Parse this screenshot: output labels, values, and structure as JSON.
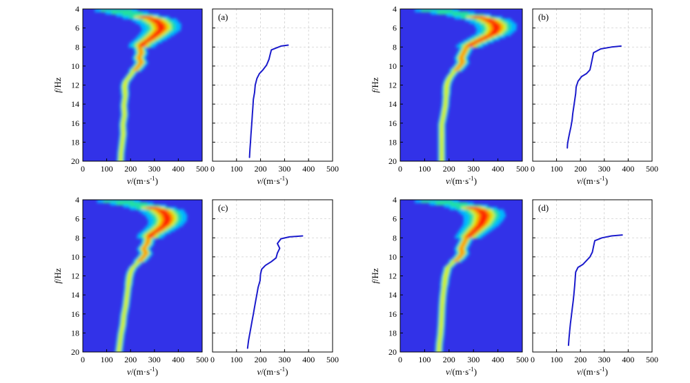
{
  "chart_data": [
    {
      "type": "heatmap",
      "panel": "a",
      "xlabel_parts": [
        "v",
        "/(m·s",
        "-1",
        ")"
      ],
      "ylabel_parts": [
        "f",
        "/Hz"
      ],
      "xlim": [
        0,
        500
      ],
      "ylim": [
        20,
        4
      ],
      "x_ticks": [
        0,
        100,
        200,
        300,
        400,
        500
      ],
      "y_ticks": [
        4,
        6,
        8,
        10,
        12,
        14,
        16,
        18,
        20
      ],
      "ridge": {
        "f": [
          4.0,
          4.5,
          5.0,
          5.5,
          6.0,
          6.5,
          7.0,
          7.5,
          8.0,
          8.5,
          9.0,
          9.5,
          10.0,
          10.5,
          11.0,
          11.5,
          12.0,
          13.0,
          14.0,
          15.0,
          16.0,
          17.0,
          18.0,
          19.0,
          20.0
        ],
        "v": [
          140,
          230,
          300,
          325,
          330,
          310,
          285,
          255,
          240,
          245,
          235,
          245,
          230,
          210,
          195,
          180,
          175,
          178,
          172,
          175,
          168,
          170,
          165,
          160,
          158
        ]
      }
    },
    {
      "type": "line",
      "panel": "a",
      "label": "(a)",
      "xlabel_parts": [
        "v",
        "/(m·s",
        "-1",
        ")"
      ],
      "xlim": [
        0,
        500
      ],
      "ylim": [
        20,
        4
      ],
      "x_ticks": [
        0,
        100,
        200,
        300,
        400,
        500
      ],
      "x": [
        315,
        285,
        245,
        240,
        235,
        225,
        210,
        195,
        185,
        178,
        175,
        170,
        168,
        166,
        164,
        162,
        160,
        158,
        156,
        155,
        154
      ],
      "y": [
        7.8,
        7.9,
        8.3,
        8.8,
        9.3,
        9.9,
        10.4,
        10.8,
        11.3,
        12.0,
        12.8,
        13.5,
        14.3,
        15.0,
        15.8,
        16.5,
        17.2,
        18.0,
        18.7,
        19.2,
        19.6
      ]
    },
    {
      "type": "heatmap",
      "panel": "b",
      "xlabel_parts": [
        "v",
        "/(m·s",
        "-1",
        ")"
      ],
      "ylabel_parts": [
        "f",
        "/Hz"
      ],
      "xlim": [
        0,
        500
      ],
      "ylim": [
        20,
        4
      ],
      "x_ticks": [
        0,
        100,
        200,
        300,
        400,
        500
      ],
      "y_ticks": [
        4,
        6,
        8,
        10,
        12,
        14,
        16,
        18,
        20
      ],
      "ridge": {
        "f": [
          4.0,
          4.5,
          5.0,
          5.5,
          6.0,
          6.5,
          7.0,
          7.5,
          8.0,
          8.5,
          9.0,
          9.5,
          10.0,
          10.5,
          11.0,
          11.5,
          12.0,
          13.0,
          14.0,
          15.0,
          16.0
        ],
        "v": [
          150,
          280,
          360,
          390,
          395,
          380,
          340,
          300,
          270,
          260,
          250,
          255,
          240,
          220,
          205,
          195,
          190,
          188,
          185,
          178,
          170
        ]
      }
    },
    {
      "type": "line",
      "panel": "b",
      "label": "(b)",
      "xlabel_parts": [
        "v",
        "/(m·s",
        "-1",
        ")"
      ],
      "xlim": [
        0,
        500
      ],
      "ylim": [
        20,
        4
      ],
      "x_ticks": [
        0,
        100,
        200,
        300,
        400,
        500
      ],
      "x": [
        370,
        330,
        285,
        255,
        250,
        245,
        240,
        225,
        205,
        190,
        182,
        180,
        176,
        172,
        168,
        165,
        160,
        155,
        150,
        146,
        145
      ],
      "y": [
        7.9,
        8.0,
        8.2,
        8.6,
        9.2,
        9.8,
        10.4,
        10.8,
        11.1,
        11.6,
        12.2,
        12.9,
        13.6,
        14.3,
        15.0,
        15.7,
        16.4,
        17.0,
        17.6,
        18.2,
        18.6
      ]
    },
    {
      "type": "heatmap",
      "panel": "c",
      "xlabel_parts": [
        "v",
        "/(m·s",
        "-1",
        ")"
      ],
      "ylabel_parts": [
        "f",
        "/Hz"
      ],
      "xlim": [
        0,
        500
      ],
      "ylim": [
        20,
        4
      ],
      "x_ticks": [
        0,
        100,
        200,
        300,
        400,
        500
      ],
      "y_ticks": [
        4,
        6,
        8,
        10,
        12,
        14,
        16,
        18,
        20
      ],
      "ridge": {
        "f": [
          4.0,
          4.5,
          5.0,
          5.5,
          6.0,
          6.5,
          7.0,
          7.5,
          8.0,
          8.5,
          9.0,
          9.5,
          10.0,
          10.5,
          11.0,
          11.5,
          12.0,
          13.0,
          14.0,
          15.0,
          16.0,
          17.0,
          18.0,
          19.0,
          20.0
        ],
        "v": [
          150,
          260,
          330,
          350,
          355,
          345,
          320,
          290,
          275,
          270,
          255,
          265,
          250,
          230,
          210,
          200,
          195,
          190,
          185,
          180,
          172,
          168,
          160,
          155,
          150
        ]
      }
    },
    {
      "type": "line",
      "panel": "c",
      "label": "(c)",
      "xlabel_parts": [
        "v",
        "/(m·s",
        "-1",
        ")"
      ],
      "xlim": [
        0,
        500
      ],
      "ylim": [
        20,
        4
      ],
      "x_ticks": [
        0,
        100,
        200,
        300,
        400,
        500
      ],
      "x": [
        375,
        320,
        285,
        270,
        280,
        270,
        265,
        245,
        220,
        205,
        200,
        198,
        190,
        185,
        180,
        175,
        170,
        165,
        160,
        155,
        150,
        146
      ],
      "y": [
        7.8,
        7.9,
        8.1,
        8.6,
        9.1,
        9.6,
        10.1,
        10.5,
        10.9,
        11.3,
        11.8,
        12.5,
        13.2,
        13.9,
        14.6,
        15.3,
        16.0,
        16.7,
        17.4,
        18.1,
        18.8,
        19.6
      ]
    },
    {
      "type": "heatmap",
      "panel": "d",
      "xlabel_parts": [
        "v",
        "/(m·s",
        "-1",
        ")"
      ],
      "ylabel_parts": [
        "f",
        "/Hz"
      ],
      "xlim": [
        0,
        500
      ],
      "ylim": [
        20,
        4
      ],
      "x_ticks": [
        0,
        100,
        200,
        300,
        400,
        500
      ],
      "y_ticks": [
        4,
        6,
        8,
        10,
        12,
        14,
        16,
        18,
        20
      ],
      "ridge": {
        "f": [
          4.0,
          4.5,
          5.0,
          5.5,
          6.0,
          6.5,
          7.0,
          7.5,
          8.0,
          8.5,
          9.0,
          9.5,
          10.0,
          10.5,
          11.0,
          11.5,
          12.0,
          13.0,
          14.0,
          15.0,
          16.0,
          17.0,
          18.0,
          19.0,
          20.0
        ],
        "v": [
          150,
          270,
          330,
          345,
          340,
          330,
          310,
          290,
          270,
          260,
          250,
          255,
          240,
          215,
          195,
          190,
          185,
          180,
          175,
          172,
          170,
          168,
          165,
          160,
          158
        ]
      }
    },
    {
      "type": "line",
      "panel": "d",
      "label": "(d)",
      "xlabel_parts": [
        "v",
        "/(m·s",
        "-1",
        ")"
      ],
      "xlim": [
        0,
        500
      ],
      "ylim": [
        20,
        4
      ],
      "x_ticks": [
        0,
        100,
        200,
        300,
        400,
        500
      ],
      "x": [
        375,
        330,
        290,
        260,
        255,
        250,
        240,
        225,
        210,
        190,
        180,
        178,
        176,
        173,
        170,
        166,
        162,
        158,
        155,
        152,
        150
      ],
      "y": [
        7.7,
        7.8,
        8.0,
        8.3,
        8.9,
        9.5,
        10.0,
        10.4,
        10.8,
        11.1,
        11.6,
        12.3,
        13.0,
        13.8,
        14.6,
        15.4,
        16.2,
        17.0,
        17.8,
        18.6,
        19.3
      ]
    }
  ],
  "colors": {
    "line": "#1a1acc",
    "heat_background": "#3232e8",
    "grid": "#cfcfcf"
  }
}
